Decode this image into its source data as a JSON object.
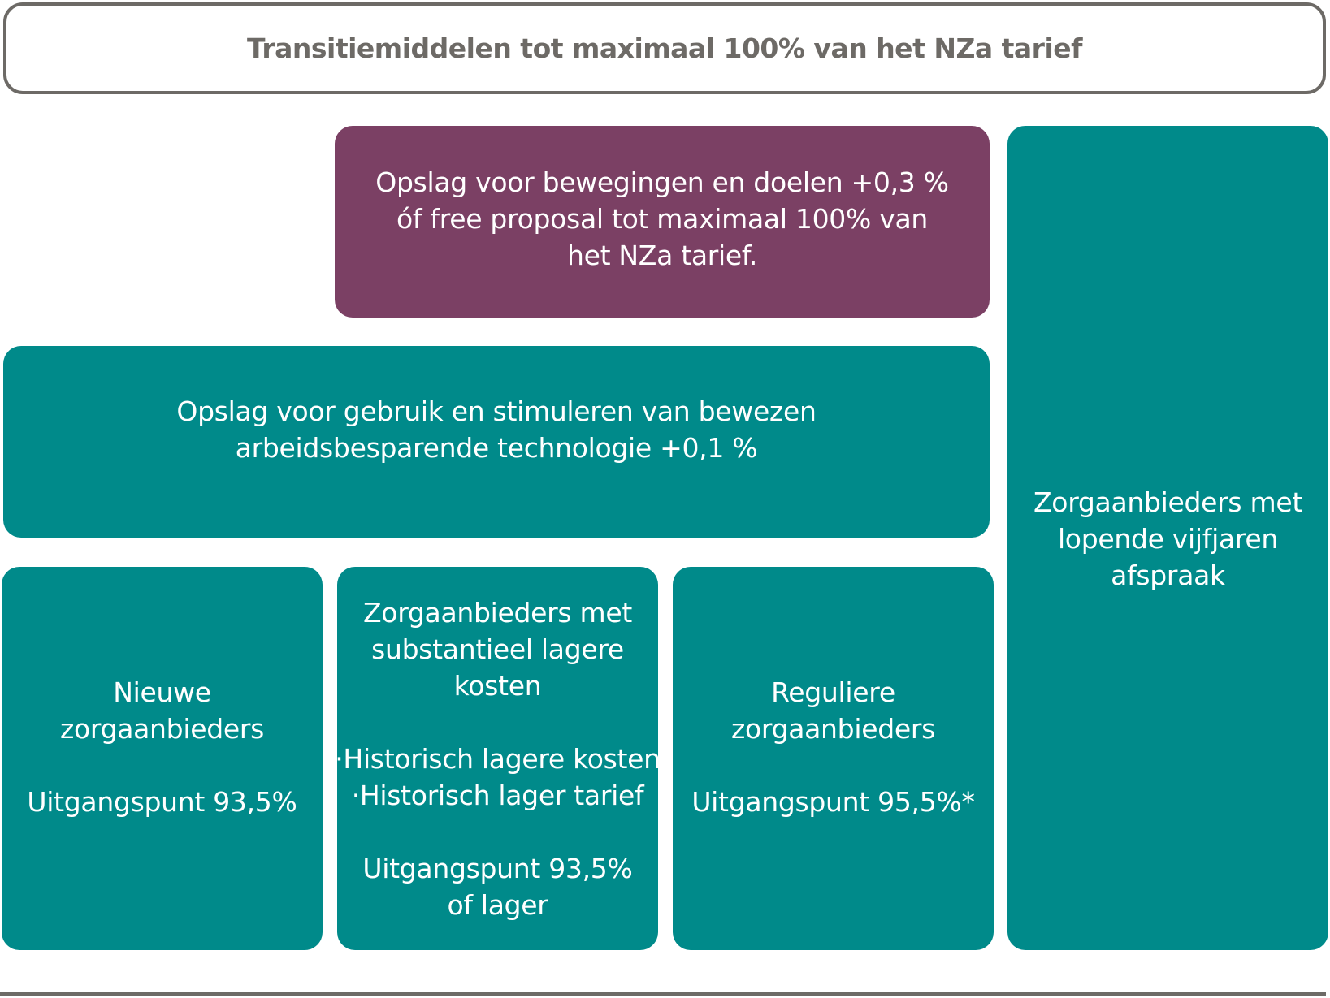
{
  "header": {
    "title": "Transitiemiddelen tot maximaal 100% van het NZa tarief"
  },
  "boxes": {
    "plum": {
      "lines": [
        "Opslag voor bewegingen en doelen +0,3 %",
        "óf free proposal tot maximaal 100% van",
        "het NZa tarief."
      ]
    },
    "technology": {
      "lines": [
        "Opslag voor gebruik en stimuleren van bewezen",
        "arbeidsbesparende technologie +0,1 %"
      ]
    },
    "new_providers": {
      "lines": [
        "Nieuwe",
        "zorgaanbieders"
      ],
      "basis": "Uitgangspunt 93,5%"
    },
    "lower_cost": {
      "lines": [
        "Zorgaanbieders met",
        "substantieel lagere",
        "kosten"
      ],
      "bullets": [
        "·Historisch lagere kosten",
        "·Historisch lager tarief"
      ],
      "basis_lines": [
        "Uitgangspunt 93,5%",
        "of lager"
      ]
    },
    "regular": {
      "lines": [
        "Reguliere",
        "zorgaanbieders"
      ],
      "basis": "Uitgangspunt 95,5%*"
    },
    "five_year": {
      "lines": [
        "Zorgaanbieders met",
        "lopende vijfjaren",
        "afspraak"
      ]
    }
  },
  "colors": {
    "teal": "#008a8a",
    "plum": "#7b4064",
    "header_border": "#6d6a66",
    "header_text": "#6d6a66",
    "box_text": "#ffffff"
  }
}
